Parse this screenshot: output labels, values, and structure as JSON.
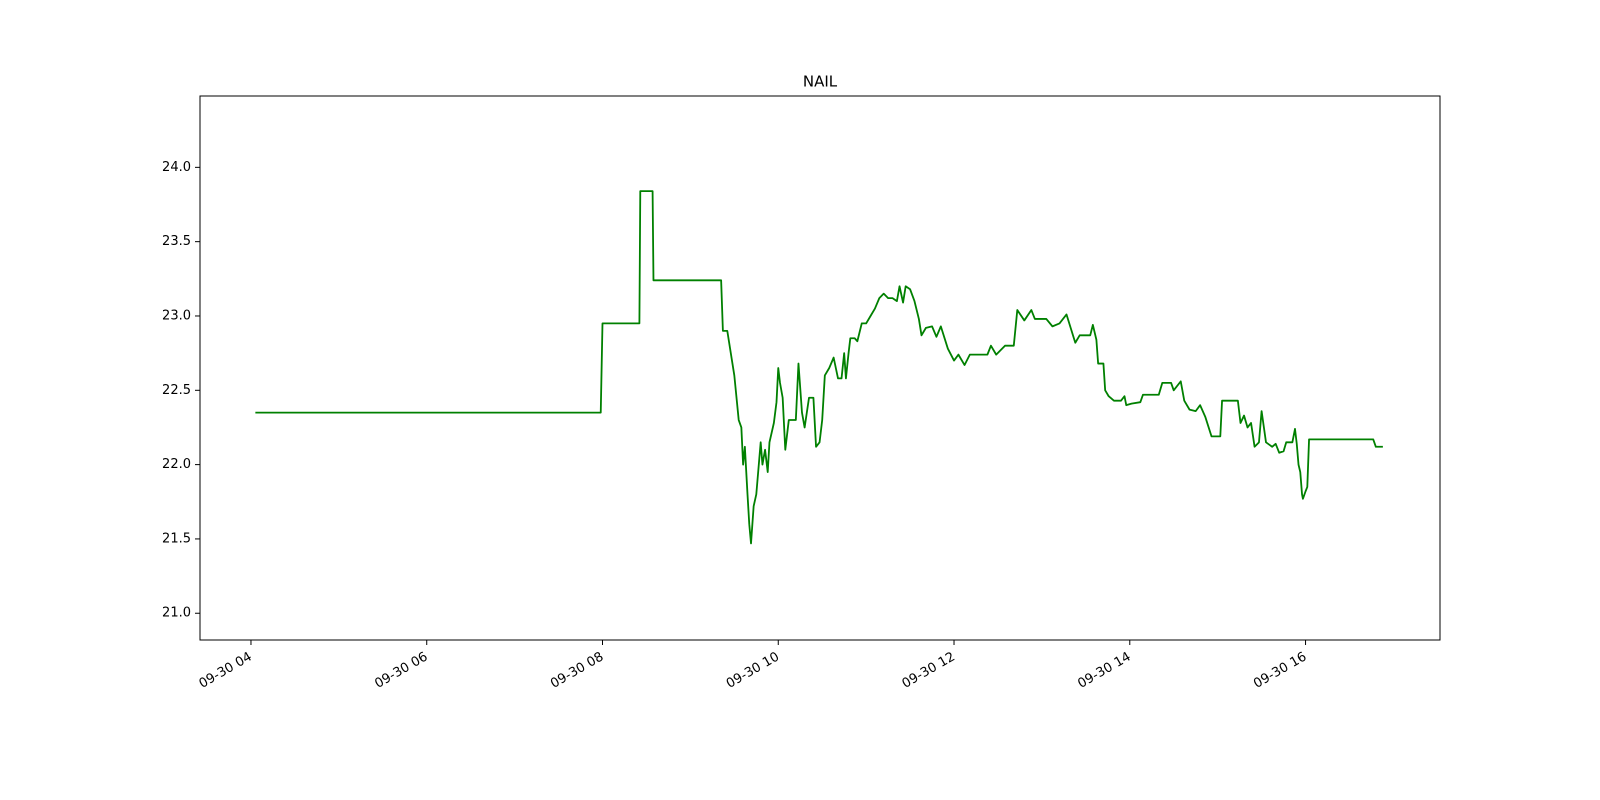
{
  "chart_data": {
    "type": "line",
    "title": "NAIL",
    "color": "#008000",
    "x": [
      4.05,
      7.98,
      8.0,
      8.42,
      8.43,
      8.57,
      8.58,
      9.35,
      9.37,
      9.42,
      9.5,
      9.55,
      9.58,
      9.6,
      9.62,
      9.65,
      9.67,
      9.69,
      9.72,
      9.75,
      9.8,
      9.82,
      9.85,
      9.88,
      9.9,
      9.95,
      9.98,
      10.0,
      10.02,
      10.05,
      10.08,
      10.12,
      10.2,
      10.23,
      10.27,
      10.3,
      10.35,
      10.4,
      10.43,
      10.47,
      10.5,
      10.53,
      10.58,
      10.63,
      10.68,
      10.72,
      10.75,
      10.77,
      10.8,
      10.82,
      10.87,
      10.9,
      10.95,
      11.0,
      11.05,
      11.1,
      11.15,
      11.2,
      11.25,
      11.3,
      11.35,
      11.38,
      11.42,
      11.45,
      11.5,
      11.55,
      11.6,
      11.63,
      11.68,
      11.75,
      11.8,
      11.85,
      11.93,
      12.0,
      12.05,
      12.12,
      12.18,
      12.38,
      12.42,
      12.48,
      12.58,
      12.68,
      12.72,
      12.8,
      12.88,
      12.92,
      13.05,
      13.12,
      13.2,
      13.28,
      13.38,
      13.43,
      13.55,
      13.58,
      13.62,
      13.64,
      13.7,
      13.72,
      13.76,
      13.82,
      13.9,
      13.94,
      13.96,
      14.02,
      14.12,
      14.15,
      14.33,
      14.37,
      14.47,
      14.5,
      14.58,
      14.62,
      14.68,
      14.75,
      14.8,
      14.86,
      14.93,
      15.03,
      15.05,
      15.23,
      15.26,
      15.3,
      15.34,
      15.38,
      15.42,
      15.47,
      15.5,
      15.55,
      15.62,
      15.66,
      15.7,
      15.75,
      15.78,
      15.85,
      15.88,
      15.9,
      15.92,
      15.94,
      15.96,
      15.97,
      16.0,
      16.02,
      16.04,
      16.77,
      16.8,
      16.88
    ],
    "values": [
      22.35,
      22.35,
      22.95,
      22.95,
      23.84,
      23.84,
      23.24,
      23.24,
      22.9,
      22.9,
      22.6,
      22.3,
      22.25,
      22.0,
      22.12,
      21.8,
      21.6,
      21.47,
      21.72,
      21.8,
      22.15,
      22.0,
      22.1,
      21.95,
      22.15,
      22.28,
      22.42,
      22.65,
      22.55,
      22.45,
      22.1,
      22.3,
      22.3,
      22.68,
      22.35,
      22.25,
      22.45,
      22.45,
      22.12,
      22.15,
      22.3,
      22.6,
      22.65,
      22.72,
      22.58,
      22.58,
      22.75,
      22.58,
      22.75,
      22.85,
      22.85,
      22.83,
      22.95,
      22.95,
      23.0,
      23.05,
      23.12,
      23.15,
      23.12,
      23.12,
      23.1,
      23.2,
      23.09,
      23.2,
      23.18,
      23.1,
      22.98,
      22.87,
      22.92,
      22.93,
      22.86,
      22.93,
      22.78,
      22.7,
      22.74,
      22.67,
      22.74,
      22.74,
      22.8,
      22.74,
      22.8,
      22.8,
      23.04,
      22.97,
      23.04,
      22.98,
      22.98,
      22.93,
      22.95,
      23.01,
      22.82,
      22.87,
      22.87,
      22.94,
      22.84,
      22.68,
      22.68,
      22.5,
      22.46,
      22.43,
      22.43,
      22.46,
      22.4,
      22.41,
      22.42,
      22.47,
      22.47,
      22.55,
      22.55,
      22.5,
      22.56,
      22.43,
      22.37,
      22.36,
      22.4,
      22.32,
      22.19,
      22.19,
      22.43,
      22.43,
      22.28,
      22.33,
      22.25,
      22.28,
      22.12,
      22.15,
      22.36,
      22.15,
      22.12,
      22.14,
      22.08,
      22.09,
      22.15,
      22.15,
      22.24,
      22.14,
      22.0,
      21.95,
      21.8,
      21.77,
      21.82,
      21.85,
      22.17,
      22.17,
      22.12,
      22.12
    ],
    "xlim": [
      3.42,
      17.53
    ],
    "xticks": [
      {
        "value": 4,
        "label": "09-30 04"
      },
      {
        "value": 6,
        "label": "09-30 06"
      },
      {
        "value": 8,
        "label": "09-30 08"
      },
      {
        "value": 10,
        "label": "09-30 10"
      },
      {
        "value": 12,
        "label": "09-30 12"
      },
      {
        "value": 14,
        "label": "09-30 14"
      },
      {
        "value": 16,
        "label": "09-30 16"
      }
    ],
    "ylim": [
      20.82,
      24.48
    ],
    "yticks": [
      {
        "value": 21,
        "label": "21.0"
      },
      {
        "value": 21.5,
        "label": "21.5"
      },
      {
        "value": 22,
        "label": "22.0"
      },
      {
        "value": 22.5,
        "label": "22.5"
      },
      {
        "value": 23,
        "label": "23.0"
      },
      {
        "value": 23.5,
        "label": "23.5"
      },
      {
        "value": 24,
        "label": "24.0"
      }
    ],
    "grid": false
  }
}
